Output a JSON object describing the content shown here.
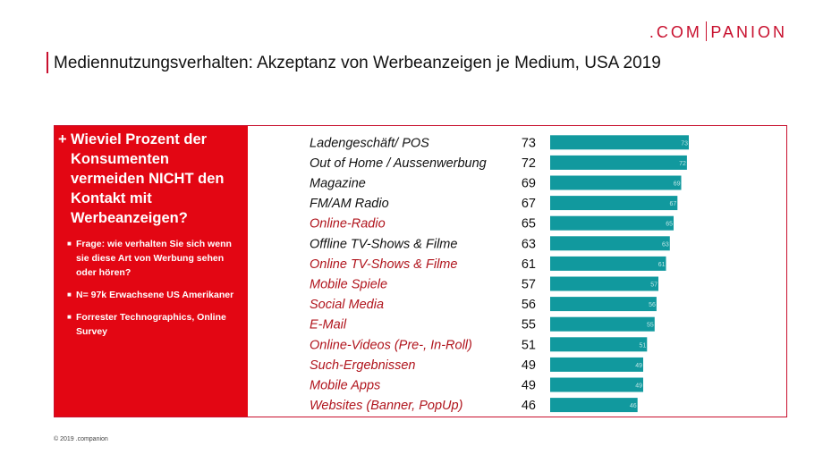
{
  "logo": {
    "left": ".COM",
    "right": "PANION"
  },
  "title": "Mediennutzungsverhalten: Akzeptanz von Werbeanzeigen je Medium, USA 2019",
  "sidebar": {
    "question_prefix": "+",
    "question": "Wieviel Prozent der Konsumenten vermeiden NICHT den Kontakt mit Werbeanzeigen?",
    "notes": [
      "Frage: wie verhalten Sie sich wenn sie diese Art von Werbung sehen oder hören?",
      "N= 97k Erwachsene US Amerikaner",
      "Forrester Technographics, Online Survey"
    ]
  },
  "footer": "© 2019 .companion",
  "colors": {
    "accent": "#c8102e",
    "sidebar_bg": "#e30613",
    "bar": "#11999e",
    "label_online": "#b0141c",
    "label_offline": "#111111"
  },
  "chart_data": {
    "type": "bar",
    "orientation": "horizontal",
    "xlim": [
      0,
      73
    ],
    "categories": [
      "Ladengeschäft/ POS",
      "Out of Home / Aussenwerbung",
      "Magazine",
      "FM/AM Radio",
      "Online-Radio",
      "Offline TV-Shows & Filme",
      "Online TV-Shows & Filme",
      "Mobile Spiele",
      "Social Media",
      "E-Mail",
      "Online-Videos (Pre-, In-Roll)",
      "Such-Ergebnissen",
      "Mobile Apps",
      "Websites (Banner, PopUp)"
    ],
    "label_online": [
      false,
      false,
      false,
      false,
      true,
      false,
      true,
      true,
      true,
      true,
      true,
      true,
      true,
      true
    ],
    "values": [
      73,
      72,
      69,
      67,
      65,
      63,
      61,
      57,
      56,
      55,
      51,
      49,
      49,
      46
    ]
  }
}
